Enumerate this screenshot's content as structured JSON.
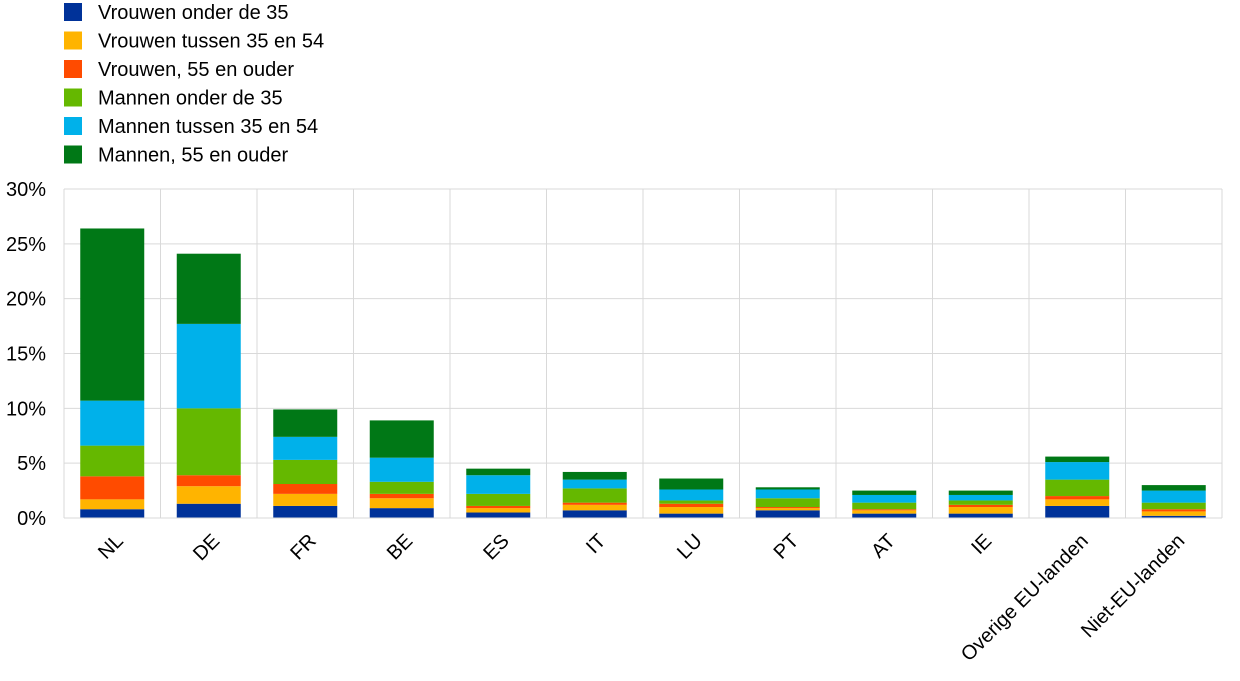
{
  "chart_data": {
    "type": "bar",
    "stacked": true,
    "categories": [
      "NL",
      "DE",
      "FR",
      "BE",
      "ES",
      "IT",
      "LU",
      "PT",
      "AT",
      "IE",
      "Overige EU-landen",
      "Niet-EU-landen"
    ],
    "series": [
      {
        "name": "Vrouwen onder de 35",
        "color": "#003299",
        "values": [
          0.8,
          1.3,
          1.1,
          0.9,
          0.5,
          0.7,
          0.4,
          0.7,
          0.4,
          0.4,
          1.1,
          0.2
        ]
      },
      {
        "name": "Vrouwen tussen 35 en 54",
        "color": "#ffb400",
        "values": [
          0.9,
          1.6,
          1.1,
          0.9,
          0.4,
          0.5,
          0.6,
          0.2,
          0.3,
          0.6,
          0.6,
          0.4
        ]
      },
      {
        "name": "Vrouwen, 55 en ouder",
        "color": "#ff4b00",
        "values": [
          2.1,
          1.0,
          0.9,
          0.4,
          0.2,
          0.2,
          0.3,
          0.1,
          0.1,
          0.2,
          0.3,
          0.2
        ]
      },
      {
        "name": "Mannen onder de 35",
        "color": "#65b800",
        "values": [
          2.8,
          6.1,
          2.2,
          1.1,
          1.1,
          1.3,
          0.3,
          0.8,
          0.6,
          0.4,
          1.5,
          0.6
        ]
      },
      {
        "name": "Mannen tussen 35 en 54",
        "color": "#00b1ea",
        "values": [
          4.1,
          7.7,
          2.1,
          2.2,
          1.7,
          0.8,
          1.0,
          0.8,
          0.7,
          0.5,
          1.6,
          1.1
        ]
      },
      {
        "name": "Mannen, 55 en ouder",
        "color": "#007816",
        "values": [
          15.7,
          6.4,
          2.5,
          3.4,
          0.6,
          0.7,
          1.0,
          0.2,
          0.4,
          0.4,
          0.5,
          0.5
        ]
      }
    ],
    "yticks": [
      "0%",
      "5%",
      "10%",
      "15%",
      "20%",
      "25%",
      "30%"
    ],
    "ylim": [
      0,
      30
    ],
    "grid": true,
    "legend_position": "top-left"
  }
}
